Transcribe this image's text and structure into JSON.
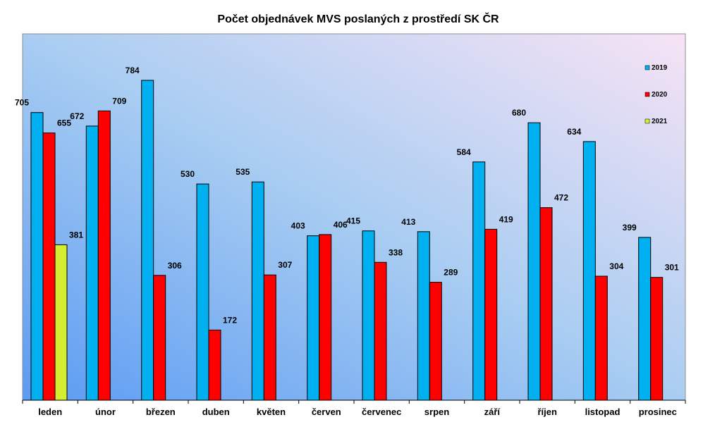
{
  "chart_data": {
    "type": "bar",
    "title": "Počet objednávek MVS poslaných z prostředí SK ČR",
    "xlabel": "",
    "ylabel": "",
    "ylim": [
      0,
      860
    ],
    "grid": false,
    "legend_position": "top-right",
    "categories": [
      "leden",
      "únor",
      "březen",
      "duben",
      "květen",
      "červen",
      "červenec",
      "srpen",
      "září",
      "říjen",
      "listopad",
      "prosinec"
    ],
    "series": [
      {
        "name": "2019",
        "color": "#00b0f0",
        "values": [
          705,
          672,
          784,
          530,
          535,
          403,
          415,
          413,
          584,
          680,
          634,
          399
        ]
      },
      {
        "name": "2020",
        "color": "#ff0000",
        "values": [
          655,
          709,
          306,
          172,
          307,
          406,
          338,
          289,
          419,
          472,
          304,
          301
        ]
      },
      {
        "name": "2021",
        "color": "#d4ed31",
        "values": [
          381,
          null,
          null,
          null,
          null,
          null,
          null,
          null,
          null,
          null,
          null,
          null
        ]
      }
    ]
  }
}
